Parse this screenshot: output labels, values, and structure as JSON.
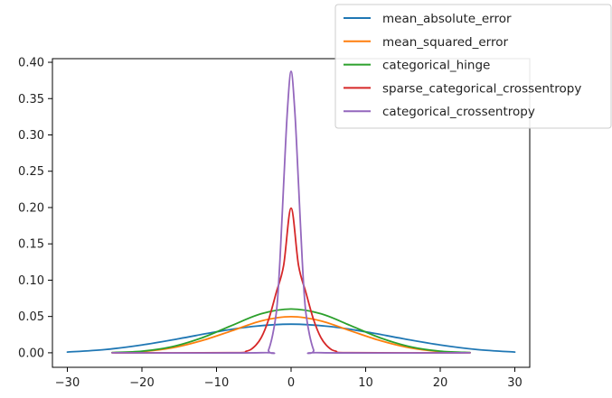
{
  "chart_data": {
    "type": "line",
    "title": "",
    "xlabel": "",
    "ylabel": "",
    "xlim": [
      -32,
      32
    ],
    "ylim": [
      -0.02,
      0.405
    ],
    "x_ticks": [
      -30,
      -20,
      -10,
      0,
      10,
      20,
      30
    ],
    "x_tick_labels": [
      "−30",
      "−20",
      "−10",
      "0",
      "10",
      "20",
      "30"
    ],
    "y_ticks": [
      0.0,
      0.05,
      0.1,
      0.15,
      0.2,
      0.25,
      0.3,
      0.35,
      0.4
    ],
    "y_tick_labels": [
      "0.00",
      "0.05",
      "0.10",
      "0.15",
      "0.20",
      "0.25",
      "0.30",
      "0.35",
      "0.40"
    ],
    "grid": false,
    "legend_position": "top-right",
    "series": [
      {
        "name": "mean_absolute_error",
        "color": "#1f77b4",
        "x": [
          -30,
          -25,
          -20,
          -15,
          -10,
          -5,
          0,
          5,
          10,
          15,
          20,
          25,
          30
        ],
        "y": [
          0.001,
          0.0044,
          0.0108,
          0.0195,
          0.0289,
          0.0364,
          0.0394,
          0.0364,
          0.0289,
          0.0195,
          0.0108,
          0.0044,
          0.001
        ]
      },
      {
        "name": "mean_squared_error",
        "color": "#ff7f0e",
        "x": [
          -24,
          -20,
          -16,
          -12,
          -8,
          -4,
          0,
          4,
          8,
          12,
          16,
          20,
          24
        ],
        "y": [
          0.0002,
          0.0016,
          0.0067,
          0.0166,
          0.0301,
          0.0439,
          0.0497,
          0.0439,
          0.0301,
          0.0166,
          0.0067,
          0.0016,
          0.0002
        ]
      },
      {
        "name": "categorical_hinge",
        "color": "#2ca02c",
        "x": [
          -24,
          -20,
          -16,
          -12,
          -8,
          -4,
          0,
          4,
          8,
          12,
          16,
          20,
          24
        ],
        "y": [
          0.0003,
          0.0022,
          0.0083,
          0.0204,
          0.0374,
          0.0538,
          0.0603,
          0.0538,
          0.0374,
          0.0204,
          0.0083,
          0.0022,
          0.0003
        ]
      },
      {
        "name": "sparse_categorical_crossentropy",
        "color": "#d62728",
        "x": [
          -24,
          -8,
          -6,
          -5,
          -4,
          -3,
          -2,
          -1,
          0,
          1,
          2,
          3,
          4,
          5,
          6,
          8,
          24
        ],
        "y": [
          0.0,
          0.0001,
          0.0022,
          0.0077,
          0.0209,
          0.0462,
          0.0826,
          0.1203,
          0.1992,
          0.1203,
          0.0826,
          0.0462,
          0.0209,
          0.0077,
          0.0022,
          0.0001,
          0.0
        ]
      },
      {
        "name": "categorical_crossentropy",
        "color": "#9467bd",
        "x": [
          -24,
          -4,
          -3,
          -2,
          -1.5,
          -1,
          -0.5,
          0,
          0.5,
          1,
          1.5,
          2,
          3,
          4,
          24
        ],
        "y": [
          0.0,
          0.0001,
          0.0045,
          0.0536,
          0.1261,
          0.2317,
          0.3326,
          0.3875,
          0.3326,
          0.2317,
          0.1261,
          0.0536,
          0.0045,
          0.0001,
          0.0
        ]
      }
    ]
  }
}
